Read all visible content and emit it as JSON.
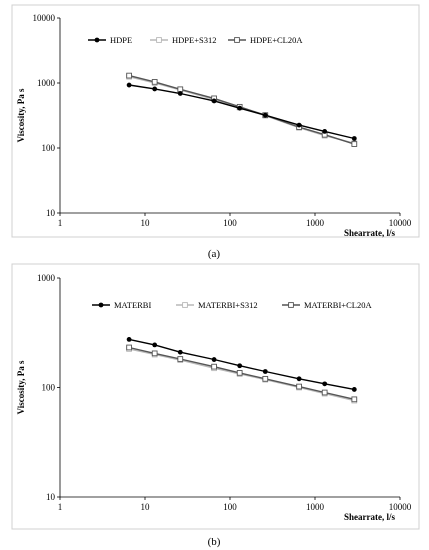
{
  "chart_data": [
    {
      "type": "line",
      "panel": "(a)",
      "xlabel": "Shearrate, l/s",
      "ylabel": "Viscosity, Pa s",
      "x_scale": "log",
      "y_scale": "log",
      "xlim": [
        1,
        10000
      ],
      "ylim": [
        10,
        10000
      ],
      "x_ticks": [
        "1",
        "10",
        "100",
        "1000",
        "10000"
      ],
      "y_ticks": [
        "10",
        "100",
        "1000",
        "10000"
      ],
      "grid": false,
      "legend_position": "top",
      "series": [
        {
          "name": "HDPE",
          "marker": "filled-circle",
          "color": "#000000",
          "x": [
            6.5,
            13,
            26,
            65,
            130,
            260,
            650,
            1300,
            2900
          ],
          "y": [
            930,
            810,
            690,
            530,
            410,
            320,
            225,
            180,
            140
          ]
        },
        {
          "name": "HDPE+S312",
          "marker": "open-square",
          "color": "#b8b8b8",
          "x": [
            6.5,
            13,
            26,
            65,
            130,
            260,
            650,
            1300,
            2900
          ],
          "y": [
            1250,
            1000,
            780,
            560,
            420,
            315,
            205,
            155,
            118
          ]
        },
        {
          "name": "HDPE+CL20A",
          "marker": "open-square",
          "color": "#555555",
          "x": [
            6.5,
            13,
            26,
            65,
            130,
            260,
            650,
            1300,
            2900
          ],
          "y": [
            1300,
            1040,
            800,
            580,
            430,
            320,
            210,
            160,
            115
          ]
        }
      ]
    },
    {
      "type": "line",
      "panel": "(b)",
      "xlabel": "Shearrate, l/s",
      "ylabel": "Viscosity, Pa s",
      "x_scale": "log",
      "y_scale": "log",
      "xlim": [
        1,
        10000
      ],
      "ylim": [
        10,
        1000
      ],
      "x_ticks": [
        "1",
        "10",
        "100",
        "1000",
        "10000"
      ],
      "y_ticks": [
        "10",
        "100",
        "1000"
      ],
      "grid": false,
      "legend_position": "top",
      "series": [
        {
          "name": "MATERBI",
          "marker": "filled-circle",
          "color": "#000000",
          "x": [
            6.5,
            13,
            26,
            65,
            130,
            260,
            650,
            1300,
            2900
          ],
          "y": [
            275,
            245,
            210,
            180,
            158,
            140,
            120,
            108,
            96
          ]
        },
        {
          "name": "MATERBI+S312",
          "marker": "open-square",
          "color": "#b8b8b8",
          "x": [
            6.5,
            13,
            26,
            65,
            130,
            260,
            650,
            1300,
            2900
          ],
          "y": [
            225,
            200,
            178,
            150,
            133,
            118,
            100,
            88,
            76
          ]
        },
        {
          "name": "MATERBI+CL20A",
          "marker": "open-square",
          "color": "#555555",
          "x": [
            6.5,
            13,
            26,
            65,
            130,
            260,
            650,
            1300,
            2900
          ],
          "y": [
            232,
            205,
            182,
            155,
            136,
            120,
            102,
            90,
            78
          ]
        }
      ]
    }
  ]
}
